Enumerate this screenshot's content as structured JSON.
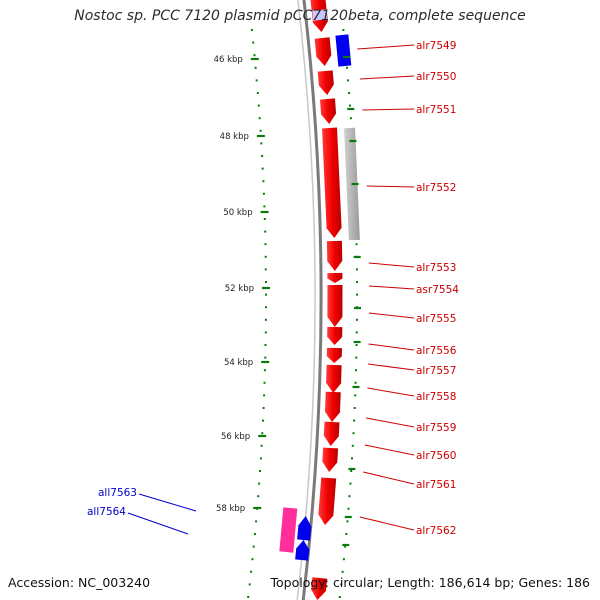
{
  "title": "Nostoc sp. PCC 7120 plasmid pCC7120beta, complete sequence",
  "footer": {
    "accession": "Accession: NC_003240",
    "topology": "Topology: circular; Length: 186,614 bp; Genes: 186"
  },
  "scale_ticks": [
    {
      "label": "46 kbp",
      "kbp": 46
    },
    {
      "label": "48 kbp",
      "kbp": 48
    },
    {
      "label": "50 kbp",
      "kbp": 50
    },
    {
      "label": "52 kbp",
      "kbp": 52
    },
    {
      "label": "54 kbp",
      "kbp": 54
    },
    {
      "label": "56 kbp",
      "kbp": 56
    },
    {
      "label": "58 kbp",
      "kbp": 58
    }
  ],
  "genes_forward": [
    {
      "name": "alr7549"
    },
    {
      "name": "alr7550"
    },
    {
      "name": "alr7551"
    },
    {
      "name": "alr7552"
    },
    {
      "name": "alr7553"
    },
    {
      "name": "asr7554"
    },
    {
      "name": "alr7555"
    },
    {
      "name": "alr7556"
    },
    {
      "name": "alr7557"
    },
    {
      "name": "alr7558"
    },
    {
      "name": "alr7559"
    },
    {
      "name": "alr7560"
    },
    {
      "name": "alr7561"
    },
    {
      "name": "alr7562"
    }
  ],
  "genes_reverse": [
    {
      "name": "all7563"
    },
    {
      "name": "all7564"
    }
  ],
  "colors": {
    "forward_gene": "#ff0000",
    "forward_label": "#cc0000",
    "reverse_gene": "#0000ee",
    "reverse_label": "#0000cc",
    "pseudo_gene": "#b4b4b4",
    "rna_gene": "#ff2e9a",
    "backbone": "#7a7a7a",
    "tick": "#0a7a0a",
    "leader": "#cc0000"
  }
}
